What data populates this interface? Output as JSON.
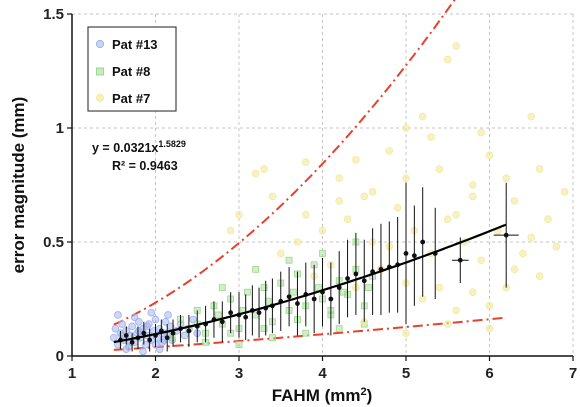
{
  "chart_data": {
    "type": "scatter",
    "xlabel": "FAHM (mm",
    "xlabel_sup": "2",
    "xlabel_end": ")",
    "ylabel": "error magnitude (mm)",
    "xlim": [
      1,
      7
    ],
    "ylim": [
      0,
      1.5
    ],
    "xticks": [
      "1",
      "2",
      "3",
      "4",
      "5",
      "6",
      "7"
    ],
    "yticks": [
      "0",
      "0.5",
      "1",
      "1.5"
    ],
    "grid": "dashed",
    "legend_position": "top-left",
    "series": [
      {
        "name": "Pat #13",
        "color": "#9db0ee",
        "marker": "circle",
        "points": [
          [
            1.5,
            0.08
          ],
          [
            1.52,
            0.12
          ],
          [
            1.55,
            0.05
          ],
          [
            1.58,
            0.1
          ],
          [
            1.6,
            0.14
          ],
          [
            1.62,
            0.07
          ],
          [
            1.65,
            0.11
          ],
          [
            1.68,
            0.04
          ],
          [
            1.7,
            0.09
          ],
          [
            1.72,
            0.13
          ],
          [
            1.75,
            0.06
          ],
          [
            1.78,
            0.1
          ],
          [
            1.8,
            0.15
          ],
          [
            1.82,
            0.08
          ],
          [
            1.85,
            0.12
          ],
          [
            1.88,
            0.05
          ],
          [
            1.9,
            0.09
          ],
          [
            1.92,
            0.14
          ],
          [
            1.95,
            0.07
          ],
          [
            1.98,
            0.11
          ],
          [
            2.0,
            0.16
          ],
          [
            2.02,
            0.08
          ],
          [
            2.05,
            0.12
          ],
          [
            2.08,
            0.06
          ],
          [
            2.1,
            0.1
          ],
          [
            2.12,
            0.15
          ],
          [
            2.15,
            0.09
          ],
          [
            2.18,
            0.13
          ],
          [
            2.2,
            0.07
          ],
          [
            2.25,
            0.11
          ],
          [
            2.3,
            0.14
          ],
          [
            2.35,
            0.09
          ],
          [
            2.4,
            0.12
          ],
          [
            2.45,
            0.16
          ],
          [
            2.5,
            0.1
          ],
          [
            1.55,
            0.18
          ],
          [
            1.65,
            0.03
          ],
          [
            1.75,
            0.17
          ],
          [
            1.85,
            0.02
          ],
          [
            1.95,
            0.19
          ],
          [
            2.05,
            0.03
          ],
          [
            2.15,
            0.18
          ],
          [
            1.6,
            0.09
          ],
          [
            1.7,
            0.06
          ],
          [
            1.8,
            0.11
          ],
          [
            1.9,
            0.13
          ],
          [
            2.0,
            0.05
          ],
          [
            2.1,
            0.07
          ]
        ]
      },
      {
        "name": "Pat #8",
        "color": "#9cd88d",
        "marker": "square",
        "points": [
          [
            2.2,
            0.08
          ],
          [
            2.3,
            0.16
          ],
          [
            2.4,
            0.12
          ],
          [
            2.5,
            0.2
          ],
          [
            2.6,
            0.1
          ],
          [
            2.7,
            0.22
          ],
          [
            2.8,
            0.14
          ],
          [
            2.9,
            0.25
          ],
          [
            3.0,
            0.12
          ],
          [
            3.1,
            0.28
          ],
          [
            3.2,
            0.18
          ],
          [
            3.3,
            0.3
          ],
          [
            3.4,
            0.15
          ],
          [
            3.5,
            0.32
          ],
          [
            3.6,
            0.2
          ],
          [
            3.7,
            0.36
          ],
          [
            3.8,
            0.22
          ],
          [
            3.9,
            0.4
          ],
          [
            4.0,
            0.25
          ],
          [
            4.1,
            0.18
          ],
          [
            4.2,
            0.33
          ],
          [
            4.3,
            0.27
          ],
          [
            4.4,
            0.38
          ],
          [
            4.5,
            0.22
          ],
          [
            4.6,
            0.35
          ],
          [
            2.6,
            0.06
          ],
          [
            2.8,
            0.3
          ],
          [
            3.0,
            0.05
          ],
          [
            3.2,
            0.38
          ],
          [
            3.4,
            0.08
          ],
          [
            3.6,
            0.42
          ],
          [
            3.8,
            0.1
          ],
          [
            4.0,
            0.45
          ],
          [
            4.2,
            0.12
          ],
          [
            4.4,
            0.5
          ],
          [
            2.5,
            0.14
          ],
          [
            2.75,
            0.18
          ],
          [
            3.05,
            0.2
          ],
          [
            3.35,
            0.24
          ],
          [
            3.65,
            0.28
          ],
          [
            3.95,
            0.3
          ],
          [
            4.25,
            0.28
          ],
          [
            4.55,
            0.3
          ],
          [
            2.9,
            0.1
          ],
          [
            3.3,
            0.12
          ],
          [
            3.7,
            0.16
          ],
          [
            4.1,
            0.2
          ],
          [
            4.5,
            0.14
          ]
        ]
      },
      {
        "name": "Pat #7",
        "color": "#f2ea9c",
        "marker": "circle",
        "points": [
          [
            3.2,
            0.8
          ],
          [
            3.3,
            0.82
          ],
          [
            3.8,
            0.85
          ],
          [
            4.2,
            0.78
          ],
          [
            4.5,
            0.7
          ],
          [
            4.8,
            0.9
          ],
          [
            5.0,
            1.0
          ],
          [
            5.2,
            1.05
          ],
          [
            5.5,
            1.3
          ],
          [
            5.6,
            1.36
          ],
          [
            6.5,
            1.05
          ],
          [
            6.9,
            0.72
          ],
          [
            6.0,
            0.88
          ],
          [
            6.2,
            0.78
          ],
          [
            5.8,
            0.7
          ],
          [
            4.0,
            0.55
          ],
          [
            4.3,
            0.6
          ],
          [
            4.6,
            0.5
          ],
          [
            4.9,
            0.65
          ],
          [
            5.1,
            0.55
          ],
          [
            5.3,
            0.45
          ],
          [
            5.5,
            0.6
          ],
          [
            5.7,
            0.5
          ],
          [
            5.9,
            0.42
          ],
          [
            6.1,
            0.55
          ],
          [
            6.3,
            0.38
          ],
          [
            6.5,
            0.52
          ],
          [
            6.7,
            0.6
          ],
          [
            3.5,
            0.45
          ],
          [
            3.7,
            0.5
          ],
          [
            3.9,
            0.35
          ],
          [
            4.1,
            0.4
          ],
          [
            4.4,
            0.3
          ],
          [
            4.7,
            0.38
          ],
          [
            5.0,
            0.32
          ],
          [
            5.2,
            0.25
          ],
          [
            5.4,
            0.3
          ],
          [
            5.6,
            0.2
          ],
          [
            5.8,
            0.28
          ],
          [
            6.0,
            0.22
          ],
          [
            6.2,
            0.3
          ],
          [
            6.4,
            0.45
          ],
          [
            6.6,
            0.35
          ],
          [
            4.5,
            0.15
          ],
          [
            5.0,
            0.1
          ],
          [
            5.5,
            0.14
          ],
          [
            6.0,
            0.12
          ],
          [
            3.8,
            0.62
          ],
          [
            4.2,
            0.68
          ],
          [
            4.6,
            0.72
          ],
          [
            5.0,
            0.78
          ],
          [
            5.4,
            0.82
          ],
          [
            5.8,
            0.75
          ],
          [
            6.3,
            0.68
          ],
          [
            3.0,
            0.62
          ],
          [
            2.9,
            0.55
          ],
          [
            3.4,
            0.7
          ],
          [
            5.3,
            0.96
          ],
          [
            4.4,
            0.86
          ],
          [
            5.9,
            0.98
          ],
          [
            6.8,
            0.48
          ],
          [
            6.6,
            0.82
          ],
          [
            4.8,
            0.48
          ],
          [
            5.6,
            0.62
          ]
        ]
      }
    ],
    "binned_means": {
      "x": [
        1.58,
        1.65,
        1.72,
        1.79,
        1.86,
        1.93,
        2.0,
        2.07,
        2.14,
        2.21,
        2.3,
        2.4,
        2.5,
        2.6,
        2.7,
        2.8,
        2.9,
        3.0,
        3.08,
        3.16,
        3.24,
        3.32,
        3.4,
        3.5,
        3.6,
        3.7,
        3.8,
        3.9,
        4.0,
        4.1,
        4.2,
        4.3,
        4.4,
        4.5,
        4.6,
        4.7,
        4.8,
        4.9,
        5.0,
        5.1,
        5.2,
        5.35,
        5.65,
        6.2
      ],
      "y": [
        0.07,
        0.09,
        0.06,
        0.08,
        0.1,
        0.07,
        0.09,
        0.11,
        0.08,
        0.1,
        0.12,
        0.11,
        0.13,
        0.14,
        0.16,
        0.15,
        0.19,
        0.18,
        0.17,
        0.2,
        0.19,
        0.21,
        0.22,
        0.24,
        0.26,
        0.23,
        0.27,
        0.25,
        0.28,
        0.25,
        0.3,
        0.34,
        0.36,
        0.33,
        0.37,
        0.38,
        0.39,
        0.4,
        0.45,
        0.44,
        0.5,
        0.45,
        0.42,
        0.53
      ],
      "err": [
        0.04,
        0.04,
        0.04,
        0.05,
        0.05,
        0.05,
        0.05,
        0.05,
        0.06,
        0.06,
        0.06,
        0.07,
        0.07,
        0.08,
        0.08,
        0.09,
        0.09,
        0.1,
        0.1,
        0.11,
        0.11,
        0.12,
        0.12,
        0.13,
        0.13,
        0.14,
        0.14,
        0.15,
        0.15,
        0.16,
        0.16,
        0.17,
        0.18,
        0.18,
        0.19,
        0.2,
        0.2,
        0.21,
        0.31,
        0.22,
        0.24,
        0.2,
        0.1,
        0.23
      ],
      "xerr": [
        0,
        0,
        0,
        0,
        0,
        0,
        0,
        0,
        0,
        0,
        0,
        0,
        0,
        0,
        0,
        0,
        0,
        0,
        0,
        0,
        0,
        0,
        0,
        0,
        0,
        0,
        0,
        0,
        0,
        0,
        0,
        0,
        0,
        0,
        0,
        0,
        0,
        0,
        0,
        0,
        0,
        0,
        0.1,
        0.15
      ]
    },
    "fit": {
      "coef": 0.0321,
      "exponent": 1.5829,
      "x_range": [
        1.5,
        6.2
      ],
      "color": "#000000"
    },
    "bounds": {
      "upper_coef": 0.0649,
      "lower_coef": 0.0157,
      "exponent": 1.3,
      "upper_x_range": [
        1.5,
        6.2
      ],
      "lower_x_range": [
        1.5,
        6.2
      ],
      "color": "#e8412c"
    },
    "annotation": {
      "line1_prefix": "y = 0.0321x",
      "line1_sup": "1.5829",
      "line2": "R² = 0.9463"
    }
  }
}
